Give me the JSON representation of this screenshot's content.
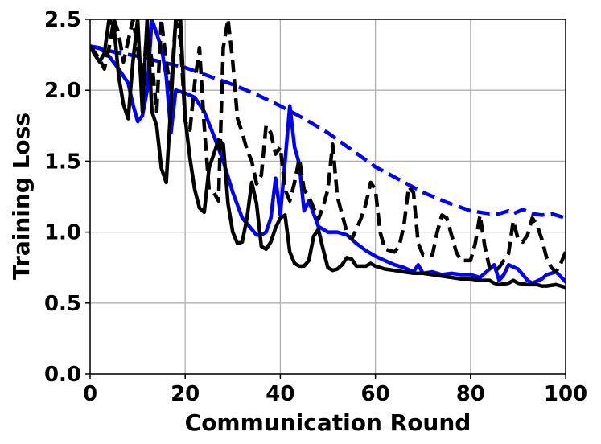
{
  "chart_data": {
    "type": "line",
    "xlabel": "Communication Round",
    "ylabel": "Training Loss",
    "xlim": [
      0,
      100
    ],
    "ylim": [
      0,
      2.5
    ],
    "xticks": [
      "0",
      "20",
      "40",
      "60",
      "80",
      "100"
    ],
    "yticks": [
      "0.0",
      "0.5",
      "1.0",
      "1.5",
      "2.0",
      "2.5"
    ],
    "grid": true,
    "legend": "none",
    "series": [
      {
        "color": "#0000ff",
        "style": "dashed",
        "points": [
          [
            0,
            2.31
          ],
          [
            5,
            2.27
          ],
          [
            10,
            2.24
          ],
          [
            15,
            2.2
          ],
          [
            20,
            2.16
          ],
          [
            25,
            2.1
          ],
          [
            30,
            2.04
          ],
          [
            35,
            1.97
          ],
          [
            40,
            1.89
          ],
          [
            45,
            1.8
          ],
          [
            50,
            1.7
          ],
          [
            55,
            1.58
          ],
          [
            60,
            1.46
          ],
          [
            65,
            1.37
          ],
          [
            70,
            1.28
          ],
          [
            75,
            1.21
          ],
          [
            80,
            1.15
          ],
          [
            84,
            1.13
          ],
          [
            86,
            1.13
          ],
          [
            88,
            1.15
          ],
          [
            89,
            1.13
          ],
          [
            91,
            1.16
          ],
          [
            93,
            1.13
          ],
          [
            95,
            1.12
          ],
          [
            97,
            1.13
          ],
          [
            100,
            1.1
          ]
        ]
      },
      {
        "color": "#0000ff",
        "style": "solid",
        "points": [
          [
            0,
            2.31
          ],
          [
            2,
            2.3
          ],
          [
            4,
            2.24
          ],
          [
            6,
            2.15
          ],
          [
            8,
            2.05
          ],
          [
            9,
            1.9
          ],
          [
            10,
            1.78
          ],
          [
            11,
            1.82
          ],
          [
            12,
            2.0
          ],
          [
            13,
            2.5
          ],
          [
            14,
            2.4
          ],
          [
            15,
            2.3
          ],
          [
            16,
            2.1
          ],
          [
            17,
            1.7
          ],
          [
            18,
            2.0
          ],
          [
            20,
            1.98
          ],
          [
            22,
            1.95
          ],
          [
            24,
            1.85
          ],
          [
            26,
            1.68
          ],
          [
            28,
            1.5
          ],
          [
            30,
            1.28
          ],
          [
            32,
            1.1
          ],
          [
            34,
            1.02
          ],
          [
            35,
            0.98
          ],
          [
            36,
            0.98
          ],
          [
            37,
            1.0
          ],
          [
            38,
            1.1
          ],
          [
            39,
            1.38
          ],
          [
            40,
            1.12
          ],
          [
            41,
            1.5
          ],
          [
            42,
            1.89
          ],
          [
            43,
            1.6
          ],
          [
            44,
            1.48
          ],
          [
            45,
            1.15
          ],
          [
            46,
            1.22
          ],
          [
            48,
            1.04
          ],
          [
            50,
            1.0
          ],
          [
            52,
            1.0
          ],
          [
            54,
            0.98
          ],
          [
            56,
            0.92
          ],
          [
            58,
            0.87
          ],
          [
            60,
            0.83
          ],
          [
            62,
            0.8
          ],
          [
            64,
            0.77
          ],
          [
            66,
            0.75
          ],
          [
            68,
            0.72
          ],
          [
            69,
            0.77
          ],
          [
            70,
            0.71
          ],
          [
            72,
            0.72
          ],
          [
            74,
            0.7
          ],
          [
            76,
            0.71
          ],
          [
            78,
            0.7
          ],
          [
            80,
            0.7
          ],
          [
            82,
            0.68
          ],
          [
            84,
            0.74
          ],
          [
            85,
            0.77
          ],
          [
            86,
            0.66
          ],
          [
            87,
            0.7
          ],
          [
            88,
            0.77
          ],
          [
            90,
            0.74
          ],
          [
            91,
            0.7
          ],
          [
            92,
            0.66
          ],
          [
            93,
            0.64
          ],
          [
            95,
            0.67
          ],
          [
            96,
            0.7
          ],
          [
            98,
            0.72
          ],
          [
            100,
            0.65
          ]
        ]
      },
      {
        "color": "#000000",
        "style": "dashed",
        "points": [
          [
            0,
            2.31
          ],
          [
            2,
            2.22
          ],
          [
            3,
            2.15
          ],
          [
            4,
            2.3
          ],
          [
            5,
            2.5
          ],
          [
            6,
            2.4
          ],
          [
            7,
            2.2
          ],
          [
            8,
            2.35
          ],
          [
            9,
            2.5
          ],
          [
            10,
            2.3
          ],
          [
            11,
            2.0
          ],
          [
            12,
            2.45
          ],
          [
            13,
            2.2
          ],
          [
            14,
            1.85
          ],
          [
            15,
            2.5
          ],
          [
            16,
            2.2
          ],
          [
            17,
            2.0
          ],
          [
            18,
            2.5
          ],
          [
            19,
            2.35
          ],
          [
            20,
            1.78
          ],
          [
            21,
            1.72
          ],
          [
            22,
            2.05
          ],
          [
            23,
            2.3
          ],
          [
            24,
            1.75
          ],
          [
            25,
            1.3
          ],
          [
            26,
            1.28
          ],
          [
            27,
            1.22
          ],
          [
            28,
            2.3
          ],
          [
            29,
            2.5
          ],
          [
            30,
            2.2
          ],
          [
            31,
            1.8
          ],
          [
            32,
            1.7
          ],
          [
            33,
            1.58
          ],
          [
            34,
            1.5
          ],
          [
            35,
            1.34
          ],
          [
            36,
            1.4
          ],
          [
            37,
            1.75
          ],
          [
            38,
            1.7
          ],
          [
            39,
            1.55
          ],
          [
            40,
            1.6
          ],
          [
            41,
            1.3
          ],
          [
            42,
            1.22
          ],
          [
            43,
            1.35
          ],
          [
            44,
            1.52
          ],
          [
            45,
            1.3
          ],
          [
            46,
            1.25
          ],
          [
            48,
            1.09
          ],
          [
            49,
            1.18
          ],
          [
            50,
            1.3
          ],
          [
            51,
            1.62
          ],
          [
            52,
            1.25
          ],
          [
            54,
            1.0
          ],
          [
            55,
            0.95
          ],
          [
            56,
            1.02
          ],
          [
            57,
            1.1
          ],
          [
            58,
            1.2
          ],
          [
            59,
            1.35
          ],
          [
            60,
            1.3
          ],
          [
            61,
            1.0
          ],
          [
            62,
            0.88
          ],
          [
            64,
            0.86
          ],
          [
            65,
            0.9
          ],
          [
            66,
            1.05
          ],
          [
            67,
            1.32
          ],
          [
            68,
            1.28
          ],
          [
            69,
            0.92
          ],
          [
            70,
            0.84
          ],
          [
            72,
            0.84
          ],
          [
            73,
            1.0
          ],
          [
            74,
            1.12
          ],
          [
            75,
            1.1
          ],
          [
            76,
            0.98
          ],
          [
            77,
            0.86
          ],
          [
            78,
            0.8
          ],
          [
            80,
            0.8
          ],
          [
            81,
            0.92
          ],
          [
            82,
            1.12
          ],
          [
            83,
            0.9
          ],
          [
            84,
            0.75
          ],
          [
            85,
            0.72
          ],
          [
            86,
            0.75
          ],
          [
            88,
            0.85
          ],
          [
            89,
            1.08
          ],
          [
            90,
            0.95
          ],
          [
            91,
            0.93
          ],
          [
            92,
            0.98
          ],
          [
            93,
            1.1
          ],
          [
            94,
            1.05
          ],
          [
            95,
            0.95
          ],
          [
            96,
            0.82
          ],
          [
            97,
            0.75
          ],
          [
            98,
            0.72
          ],
          [
            99,
            0.78
          ],
          [
            100,
            0.86
          ]
        ]
      },
      {
        "color": "#000000",
        "style": "solid",
        "points": [
          [
            0,
            2.31
          ],
          [
            1,
            2.25
          ],
          [
            2,
            2.2
          ],
          [
            3,
            2.26
          ],
          [
            4,
            2.5
          ],
          [
            5,
            2.45
          ],
          [
            6,
            2.1
          ],
          [
            7,
            1.9
          ],
          [
            8,
            1.8
          ],
          [
            9,
            2.2
          ],
          [
            10,
            2.5
          ],
          [
            11,
            1.85
          ],
          [
            12,
            2.5
          ],
          [
            13,
            1.85
          ],
          [
            14,
            1.75
          ],
          [
            15,
            1.45
          ],
          [
            16,
            1.35
          ],
          [
            17,
            1.9
          ],
          [
            18,
            2.5
          ],
          [
            19,
            2.5
          ],
          [
            20,
            1.8
          ],
          [
            21,
            1.52
          ],
          [
            22,
            1.3
          ],
          [
            23,
            1.17
          ],
          [
            24,
            1.14
          ],
          [
            25,
            1.45
          ],
          [
            26,
            1.55
          ],
          [
            27,
            1.65
          ],
          [
            28,
            1.62
          ],
          [
            29,
            1.2
          ],
          [
            30,
            1.0
          ],
          [
            31,
            0.92
          ],
          [
            32,
            0.93
          ],
          [
            33,
            1.1
          ],
          [
            34,
            1.35
          ],
          [
            35,
            1.2
          ],
          [
            36,
            0.9
          ],
          [
            37,
            0.88
          ],
          [
            38,
            0.93
          ],
          [
            39,
            1.03
          ],
          [
            40,
            1.1
          ],
          [
            41,
            1.12
          ],
          [
            42,
            0.86
          ],
          [
            43,
            0.78
          ],
          [
            44,
            0.76
          ],
          [
            45,
            0.76
          ],
          [
            46,
            0.8
          ],
          [
            47,
            0.97
          ],
          [
            48,
            1.02
          ],
          [
            49,
            0.88
          ],
          [
            50,
            0.75
          ],
          [
            51,
            0.73
          ],
          [
            52,
            0.74
          ],
          [
            53,
            0.77
          ],
          [
            54,
            0.82
          ],
          [
            55,
            0.81
          ],
          [
            56,
            0.76
          ],
          [
            58,
            0.76
          ],
          [
            59,
            0.78
          ],
          [
            60,
            0.76
          ],
          [
            62,
            0.74
          ],
          [
            64,
            0.73
          ],
          [
            66,
            0.72
          ],
          [
            68,
            0.71
          ],
          [
            70,
            0.71
          ],
          [
            72,
            0.7
          ],
          [
            74,
            0.69
          ],
          [
            76,
            0.68
          ],
          [
            78,
            0.67
          ],
          [
            80,
            0.67
          ],
          [
            82,
            0.66
          ],
          [
            84,
            0.66
          ],
          [
            85,
            0.64
          ],
          [
            86,
            0.63
          ],
          [
            88,
            0.64
          ],
          [
            89,
            0.66
          ],
          [
            90,
            0.64
          ],
          [
            92,
            0.63
          ],
          [
            94,
            0.63
          ],
          [
            95,
            0.62
          ],
          [
            96,
            0.62
          ],
          [
            98,
            0.63
          ],
          [
            100,
            0.61
          ]
        ]
      }
    ]
  }
}
